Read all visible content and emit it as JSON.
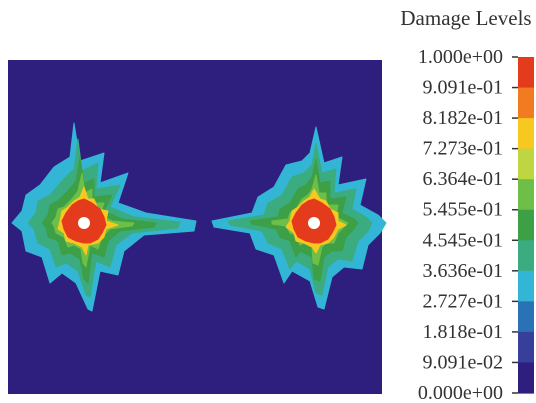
{
  "chart_data": {
    "type": "heatmap",
    "legend": {
      "title": "Damage Levels",
      "ticks": [
        "1.000e+00",
        "9.091e-01",
        "8.182e-01",
        "7.273e-01",
        "6.364e-01",
        "5.455e-01",
        "4.545e-01",
        "3.636e-01",
        "2.727e-01",
        "1.818e-01",
        "9.091e-02",
        "0.000e+00"
      ],
      "colors": [
        "#e43b1c",
        "#f27b22",
        "#f7c81f",
        "#bfd541",
        "#6dbf48",
        "#3d9f46",
        "#3bac80",
        "#33b6d6",
        "#2a72b6",
        "#373f9b",
        "#2e1f7e"
      ],
      "value_range": [
        0,
        1
      ]
    },
    "background_color": "#2e1f7e",
    "hole_color": "#ffffff",
    "damage_zones": [
      {
        "name": "left",
        "levels": [
          {
            "level": 0.1,
            "color": "#33b6d6"
          },
          {
            "level": 0.3,
            "color": "#3bac80"
          },
          {
            "level": 0.5,
            "color": "#3d9f46"
          },
          {
            "level": 0.6,
            "color": "#6dbf48"
          },
          {
            "level": 0.75,
            "color": "#f7c81f"
          },
          {
            "level": 1.0,
            "color": "#e43b1c"
          }
        ]
      },
      {
        "name": "right",
        "levels": [
          {
            "level": 0.1,
            "color": "#33b6d6"
          },
          {
            "level": 0.3,
            "color": "#3bac80"
          },
          {
            "level": 0.5,
            "color": "#3d9f46"
          },
          {
            "level": 0.6,
            "color": "#6dbf48"
          },
          {
            "level": 0.75,
            "color": "#f7c81f"
          },
          {
            "level": 1.0,
            "color": "#e43b1c"
          }
        ]
      }
    ]
  }
}
